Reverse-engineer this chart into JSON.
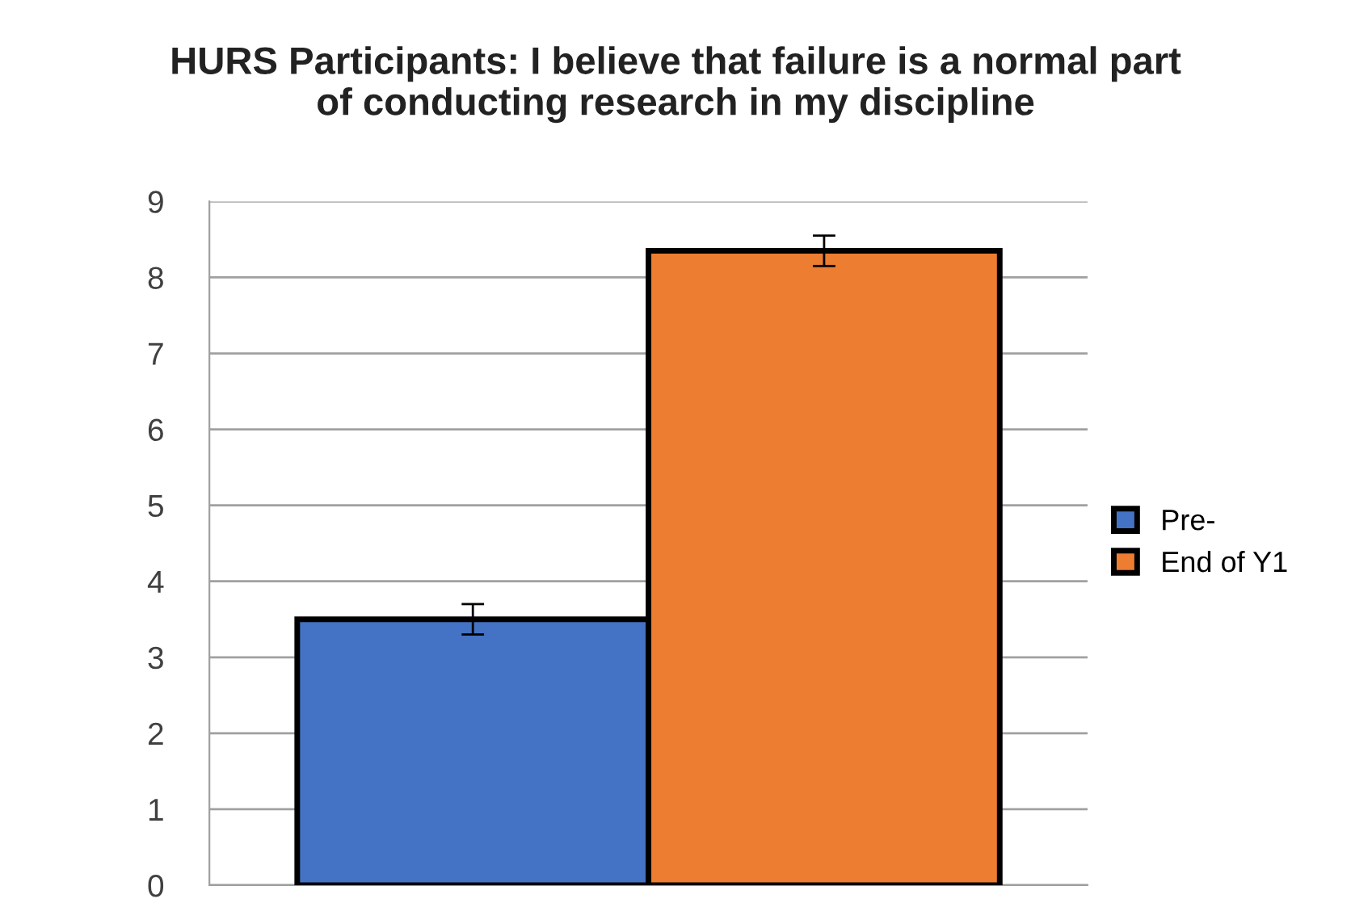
{
  "chart_data": {
    "type": "bar",
    "title": "HURS Participants: I believe that failure is a normal part\nof conducting research in my discipline",
    "categories": [
      null
    ],
    "series": [
      {
        "name": "Pre-",
        "color": "#4472c4",
        "values": [
          3.5
        ],
        "errors": [
          0.2
        ]
      },
      {
        "name": "End of Y1",
        "color": "#ed7d31",
        "values": [
          8.35
        ],
        "errors": [
          0.2
        ]
      }
    ],
    "ylim": [
      0,
      9
    ],
    "yticks": [
      0,
      1,
      2,
      3,
      4,
      5,
      6,
      7,
      8,
      9
    ],
    "grid": "y",
    "legend": "right"
  }
}
